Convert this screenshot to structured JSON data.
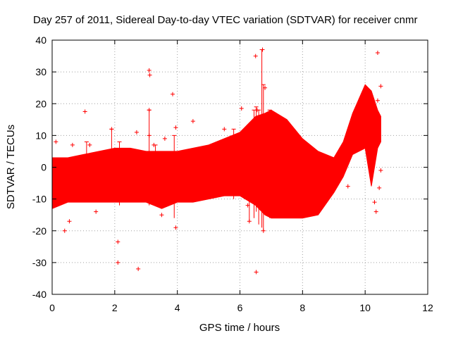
{
  "chart_data": {
    "type": "scatter",
    "title": "Day 257 of 2011, Sidereal Day-to-day VTEC variation (SDTVAR) for receiver cnmr",
    "xlabel": "GPS time / hours",
    "ylabel": "SDTVAR / TECUs",
    "xlim": [
      0,
      12
    ],
    "ylim": [
      -40,
      40
    ],
    "x_ticks": [
      0,
      2,
      4,
      6,
      8,
      10,
      12
    ],
    "y_ticks": [
      -40,
      -30,
      -20,
      -10,
      0,
      10,
      20,
      30,
      40
    ],
    "grid": true,
    "legend": "none",
    "series_color": "#ff0000",
    "marker": "plus",
    "envelope": [
      {
        "x": 0.0,
        "upper": 3,
        "lower": -13
      },
      {
        "x": 0.5,
        "upper": 3,
        "lower": -11
      },
      {
        "x": 1.0,
        "upper": 4,
        "lower": -11
      },
      {
        "x": 1.5,
        "upper": 5,
        "lower": -11
      },
      {
        "x": 2.0,
        "upper": 6,
        "lower": -11
      },
      {
        "x": 2.5,
        "upper": 6,
        "lower": -11
      },
      {
        "x": 3.0,
        "upper": 5,
        "lower": -11
      },
      {
        "x": 3.5,
        "upper": 5,
        "lower": -13
      },
      {
        "x": 4.0,
        "upper": 5,
        "lower": -11
      },
      {
        "x": 4.5,
        "upper": 6,
        "lower": -11
      },
      {
        "x": 5.0,
        "upper": 7,
        "lower": -10
      },
      {
        "x": 5.5,
        "upper": 9,
        "lower": -9
      },
      {
        "x": 6.0,
        "upper": 11,
        "lower": -9
      },
      {
        "x": 6.5,
        "upper": 16,
        "lower": -12
      },
      {
        "x": 6.8,
        "upper": 17,
        "lower": -15
      },
      {
        "x": 7.0,
        "upper": 18,
        "lower": -16
      },
      {
        "x": 7.5,
        "upper": 15,
        "lower": -16
      },
      {
        "x": 8.0,
        "upper": 9,
        "lower": -16
      },
      {
        "x": 8.5,
        "upper": 5,
        "lower": -15
      },
      {
        "x": 9.0,
        "upper": 3,
        "lower": -8
      },
      {
        "x": 9.3,
        "upper": 8,
        "lower": -3
      },
      {
        "x": 9.6,
        "upper": 17,
        "lower": 4
      },
      {
        "x": 10.0,
        "upper": 26,
        "lower": 6
      },
      {
        "x": 10.2,
        "upper": 24,
        "lower": -6
      },
      {
        "x": 10.4,
        "upper": 18,
        "lower": 6
      },
      {
        "x": 10.5,
        "upper": 16,
        "lower": 8
      }
    ],
    "outliers": [
      {
        "x": 0.12,
        "y": 8
      },
      {
        "x": 0.4,
        "y": -20
      },
      {
        "x": 0.55,
        "y": -17
      },
      {
        "x": 0.65,
        "y": 7
      },
      {
        "x": 1.05,
        "y": 17.5
      },
      {
        "x": 1.2,
        "y": 7
      },
      {
        "x": 1.4,
        "y": -14
      },
      {
        "x": 1.9,
        "y": 12
      },
      {
        "x": 2.1,
        "y": -30
      },
      {
        "x": 2.1,
        "y": -23.5
      },
      {
        "x": 2.7,
        "y": 11
      },
      {
        "x": 2.75,
        "y": -32
      },
      {
        "x": 3.1,
        "y": 30.5
      },
      {
        "x": 3.12,
        "y": 29
      },
      {
        "x": 3.1,
        "y": 18
      },
      {
        "x": 3.1,
        "y": 10
      },
      {
        "x": 3.25,
        "y": 7
      },
      {
        "x": 3.5,
        "y": -15
      },
      {
        "x": 3.6,
        "y": 9
      },
      {
        "x": 3.85,
        "y": 23
      },
      {
        "x": 3.95,
        "y": 12.5
      },
      {
        "x": 3.95,
        "y": -19
      },
      {
        "x": 4.5,
        "y": 14.5
      },
      {
        "x": 5.5,
        "y": 12
      },
      {
        "x": 6.05,
        "y": 18.5
      },
      {
        "x": 6.25,
        "y": -12
      },
      {
        "x": 6.3,
        "y": -17
      },
      {
        "x": 6.5,
        "y": 35
      },
      {
        "x": 6.52,
        "y": -33
      },
      {
        "x": 6.55,
        "y": 18
      },
      {
        "x": 6.72,
        "y": 37
      },
      {
        "x": 6.75,
        "y": -20
      },
      {
        "x": 6.8,
        "y": 25
      },
      {
        "x": 9.45,
        "y": -6
      },
      {
        "x": 10.3,
        "y": -11
      },
      {
        "x": 10.35,
        "y": -14
      },
      {
        "x": 10.4,
        "y": 36
      },
      {
        "x": 10.45,
        "y": -6.5
      },
      {
        "x": 10.5,
        "y": 25.5
      },
      {
        "x": 10.5,
        "y": -1
      },
      {
        "x": 10.4,
        "y": 21
      }
    ],
    "spikes": [
      {
        "x": 1.1,
        "low": 0,
        "high": 8
      },
      {
        "x": 1.9,
        "low": 0,
        "high": 12
      },
      {
        "x": 2.15,
        "low": -12,
        "high": 8
      },
      {
        "x": 3.1,
        "low": -12,
        "high": 18
      },
      {
        "x": 3.3,
        "low": -10,
        "high": 7
      },
      {
        "x": 3.9,
        "low": -16,
        "high": 10
      },
      {
        "x": 5.8,
        "low": -10,
        "high": 12
      },
      {
        "x": 6.3,
        "low": -17,
        "high": 8
      },
      {
        "x": 6.45,
        "low": -16,
        "high": 18
      },
      {
        "x": 6.52,
        "low": -14,
        "high": 19
      },
      {
        "x": 6.6,
        "low": -18,
        "high": 18
      },
      {
        "x": 6.7,
        "low": -19,
        "high": 37
      },
      {
        "x": 6.75,
        "low": -20,
        "high": 26
      },
      {
        "x": 6.95,
        "low": -16,
        "high": 18
      }
    ]
  }
}
